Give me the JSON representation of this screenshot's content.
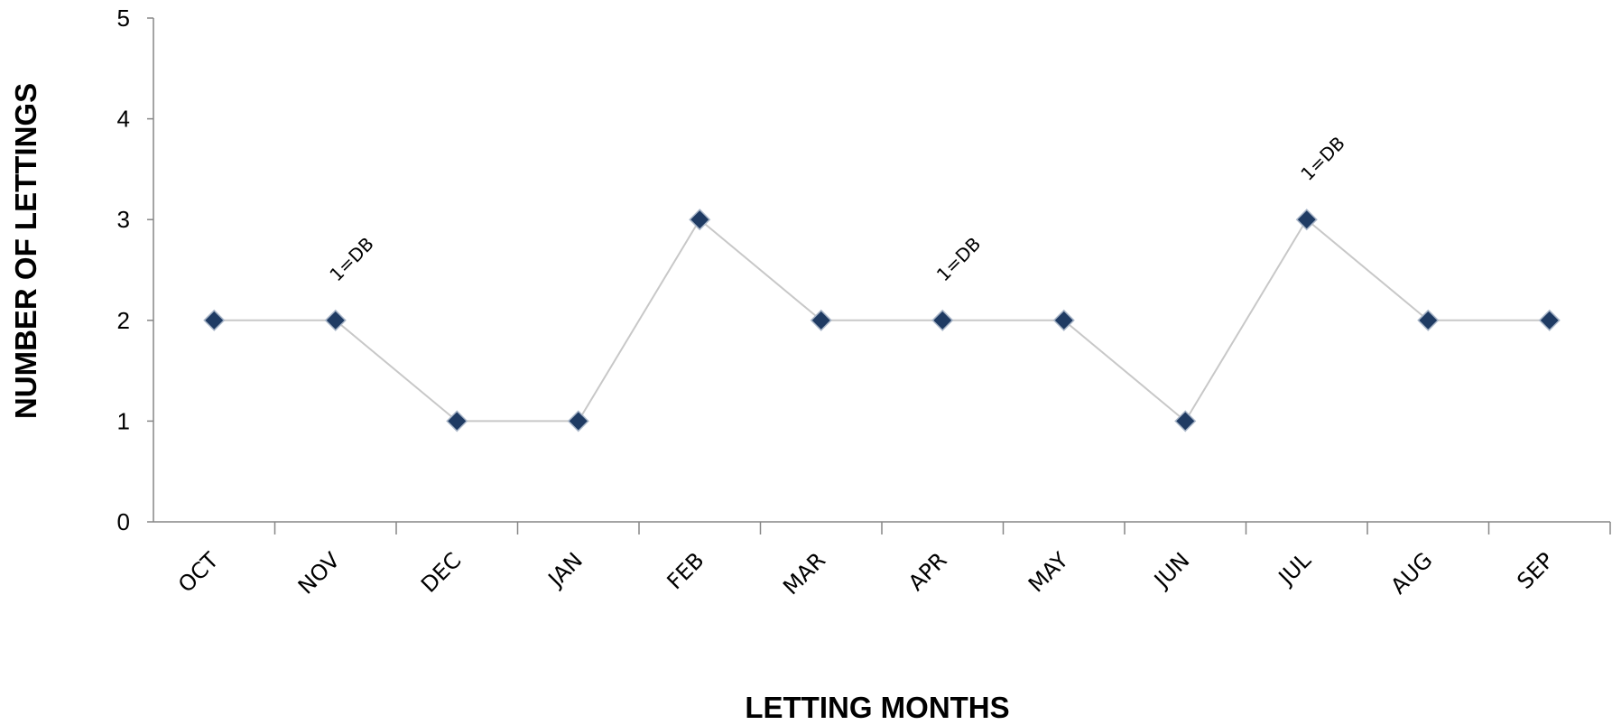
{
  "chart_data": {
    "type": "line",
    "categories": [
      "OCT",
      "NOV",
      "DEC",
      "JAN",
      "FEB",
      "MAR",
      "APR",
      "MAY",
      "JUN",
      "JUL",
      "AUG",
      "SEP"
    ],
    "series": [
      {
        "values": [
          2,
          2,
          1,
          1,
          3,
          2,
          2,
          2,
          1,
          3,
          2,
          2
        ]
      }
    ],
    "xlabel": "LETTING MONTHS",
    "ylabel": "NUMBER OF LETTINGS",
    "ylim": [
      0,
      5
    ],
    "yticks": [
      0,
      1,
      2,
      3,
      4,
      5
    ],
    "grid": false,
    "legend": "none",
    "annotations": [
      {
        "category": "NOV",
        "text": "1=DB"
      },
      {
        "category": "APR",
        "text": "1=DB"
      },
      {
        "category": "JUL",
        "text": "1=DB"
      }
    ],
    "colors": {
      "line": "#c8c8c8",
      "marker": "#1f3b63",
      "axis": "#868686"
    }
  }
}
